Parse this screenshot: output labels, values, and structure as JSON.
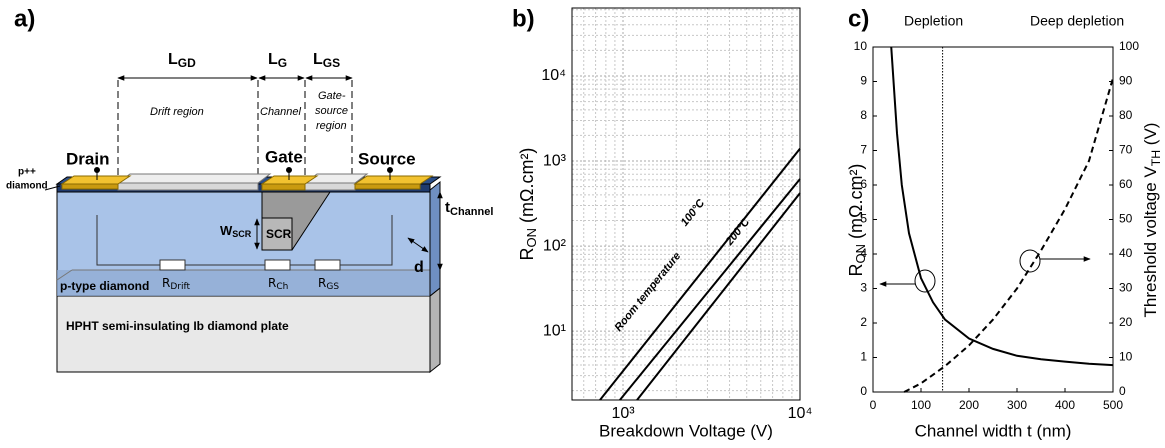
{
  "diagram": {
    "label": "a)",
    "l_gd": {
      "main": "L",
      "sub": "GD"
    },
    "l_g": {
      "main": "L",
      "sub": "G"
    },
    "l_gs": {
      "main": "L",
      "sub": "GS"
    },
    "drift_region": "Drift region",
    "channel": "Channel",
    "gate_source_region": [
      "Gate-",
      "source",
      "region"
    ],
    "drain": "Drain",
    "gate": "Gate",
    "source": "Source",
    "p_plus_diamond": [
      "p++",
      "diamond"
    ],
    "w_scr": {
      "main": "W",
      "sub": "SCR"
    },
    "scr": "SCR",
    "t_channel": {
      "main": "t",
      "sub": "Channel"
    },
    "d": "d",
    "p_type_diamond": "p-type diamond",
    "r_drift": {
      "main": "R",
      "sub": "Drift"
    },
    "r_ch": {
      "main": "R",
      "sub": "Ch"
    },
    "r_gs": {
      "main": "R",
      "sub": "GS"
    },
    "substrate": "HPHT semi-insulating Ib diamond plate"
  },
  "chart_data": [
    {
      "type": "line",
      "label": "b)",
      "xlabel": "Breakdown Voltage (V)",
      "ylabel": {
        "main": "R",
        "sub": "ON",
        "rest": " (mΩ.cm²)"
      },
      "xscale": "log",
      "yscale": "log",
      "grid": true,
      "xlim": [
        515,
        10000
      ],
      "ylim": [
        1.55,
        63000
      ],
      "xticks": [
        {
          "value": 1000,
          "label": "10³"
        },
        {
          "value": 10000,
          "label": "10⁴"
        }
      ],
      "yticks": [
        {
          "value": 10,
          "label": "10¹"
        },
        {
          "value": 100,
          "label": "10²"
        },
        {
          "value": 1000,
          "label": "10³"
        },
        {
          "value": 10000,
          "label": "10⁴"
        }
      ],
      "xminorticks": [
        600,
        700,
        800,
        900,
        2000,
        3000,
        4000,
        5000,
        6000,
        7000,
        8000,
        9000
      ],
      "yminorticks": [
        2,
        3,
        4,
        5,
        6,
        7,
        8,
        9,
        20,
        30,
        40,
        50,
        60,
        70,
        80,
        90,
        200,
        300,
        400,
        500,
        600,
        700,
        800,
        900,
        2000,
        3000,
        4000,
        5000,
        6000,
        7000,
        8000,
        9000,
        20000,
        30000,
        40000,
        50000,
        60000
      ],
      "series": [
        {
          "name": "Room temperature",
          "color": "#000000",
          "x": [
            741,
            10000
          ],
          "values": [
            1.55,
            1400
          ]
        },
        {
          "name": "100°C",
          "color": "#000000",
          "x": [
            960,
            10000
          ],
          "values": [
            1.55,
            615
          ]
        },
        {
          "name": "200°C",
          "color": "#000000",
          "x": [
            1200,
            10000
          ],
          "values": [
            1.55,
            420
          ]
        }
      ]
    },
    {
      "type": "line",
      "label": "c)",
      "xlabel": "Channel width t (nm)",
      "ylabel": {
        "main": "R",
        "sub": "ON",
        "rest": " (mΩ.cm²)"
      },
      "y2label": {
        "main": "Threshold voltage V",
        "sub": "TH",
        "rest": " (V)"
      },
      "regions": [
        "Depletion",
        "Deep depletion"
      ],
      "vline": 145,
      "grid": false,
      "xlim": [
        0,
        500
      ],
      "xticks": [
        0,
        100,
        200,
        300,
        400,
        500
      ],
      "ylim": [
        0,
        10
      ],
      "yticks": [
        0,
        1,
        2,
        3,
        4,
        5,
        6,
        7,
        8,
        9,
        10
      ],
      "y2lim": [
        0,
        100
      ],
      "y2ticks": [
        0,
        10,
        20,
        30,
        40,
        50,
        60,
        70,
        80,
        90,
        100
      ],
      "series": [
        {
          "color": "#000000",
          "dash": false,
          "x": [
            38,
            50,
            60,
            75,
            100,
            125,
            150,
            200,
            250,
            300,
            350,
            400,
            450,
            500
          ],
          "values": [
            10,
            7.5,
            6.0,
            4.6,
            3.3,
            2.6,
            2.1,
            1.55,
            1.25,
            1.05,
            0.95,
            0.88,
            0.82,
            0.78
          ]
        },
        {
          "color": "#000000",
          "dash": true,
          "axis": "y2",
          "x": [
            65,
            100,
            150,
            200,
            250,
            300,
            350,
            400,
            450,
            500
          ],
          "values": [
            0,
            2.5,
            7.5,
            13.5,
            21,
            30,
            41,
            53,
            67,
            91
          ]
        }
      ]
    }
  ]
}
